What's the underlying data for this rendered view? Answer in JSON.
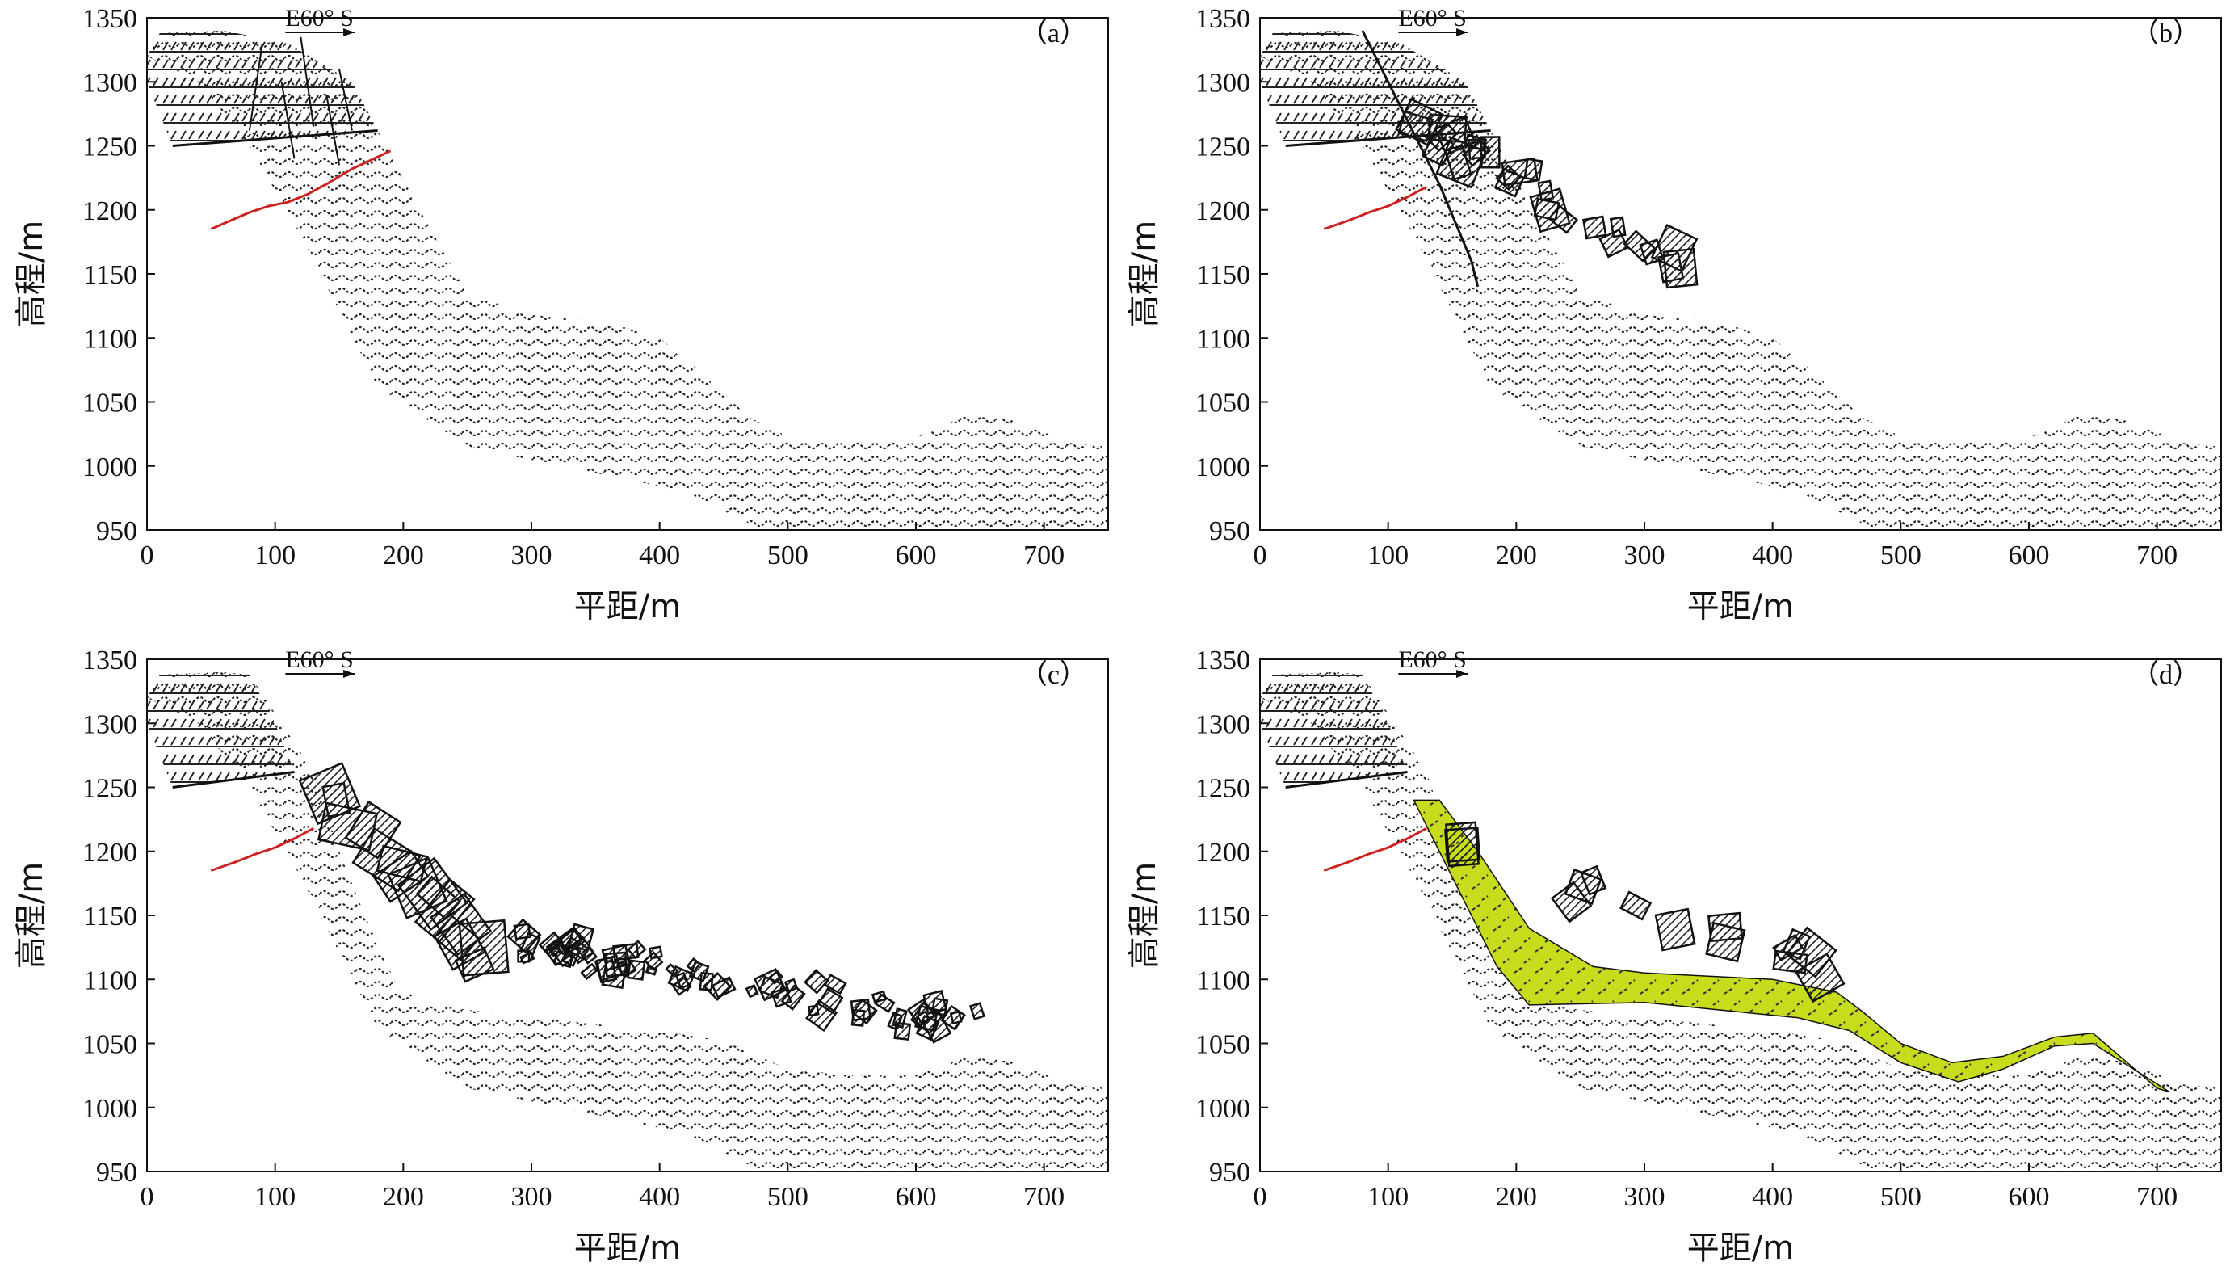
{
  "figure": {
    "direction_label": "E60° S",
    "x_axis": {
      "label": "平距/m",
      "range": [
        0,
        750
      ],
      "ticks": [
        0,
        100,
        200,
        300,
        400,
        500,
        600,
        700
      ]
    },
    "y_axis": {
      "label": "高程/m",
      "range": [
        950,
        1350
      ],
      "ticks": [
        950,
        1000,
        1050,
        1100,
        1150,
        1200,
        1250,
        1300,
        1350
      ]
    },
    "colors": {
      "deposit": "#c8dc1e",
      "fault": "#cc2222",
      "rock_pattern": "#222222"
    }
  },
  "panels": [
    {
      "id": "a",
      "label": "（a）",
      "stage": "intact slope with cracks"
    },
    {
      "id": "b",
      "label": "（b）",
      "stage": "sliding and fragmentation begins"
    },
    {
      "id": "c",
      "label": "（c）",
      "stage": "blocks scattered downslope"
    },
    {
      "id": "d",
      "label": "（d）",
      "stage": "final deposit"
    }
  ]
}
